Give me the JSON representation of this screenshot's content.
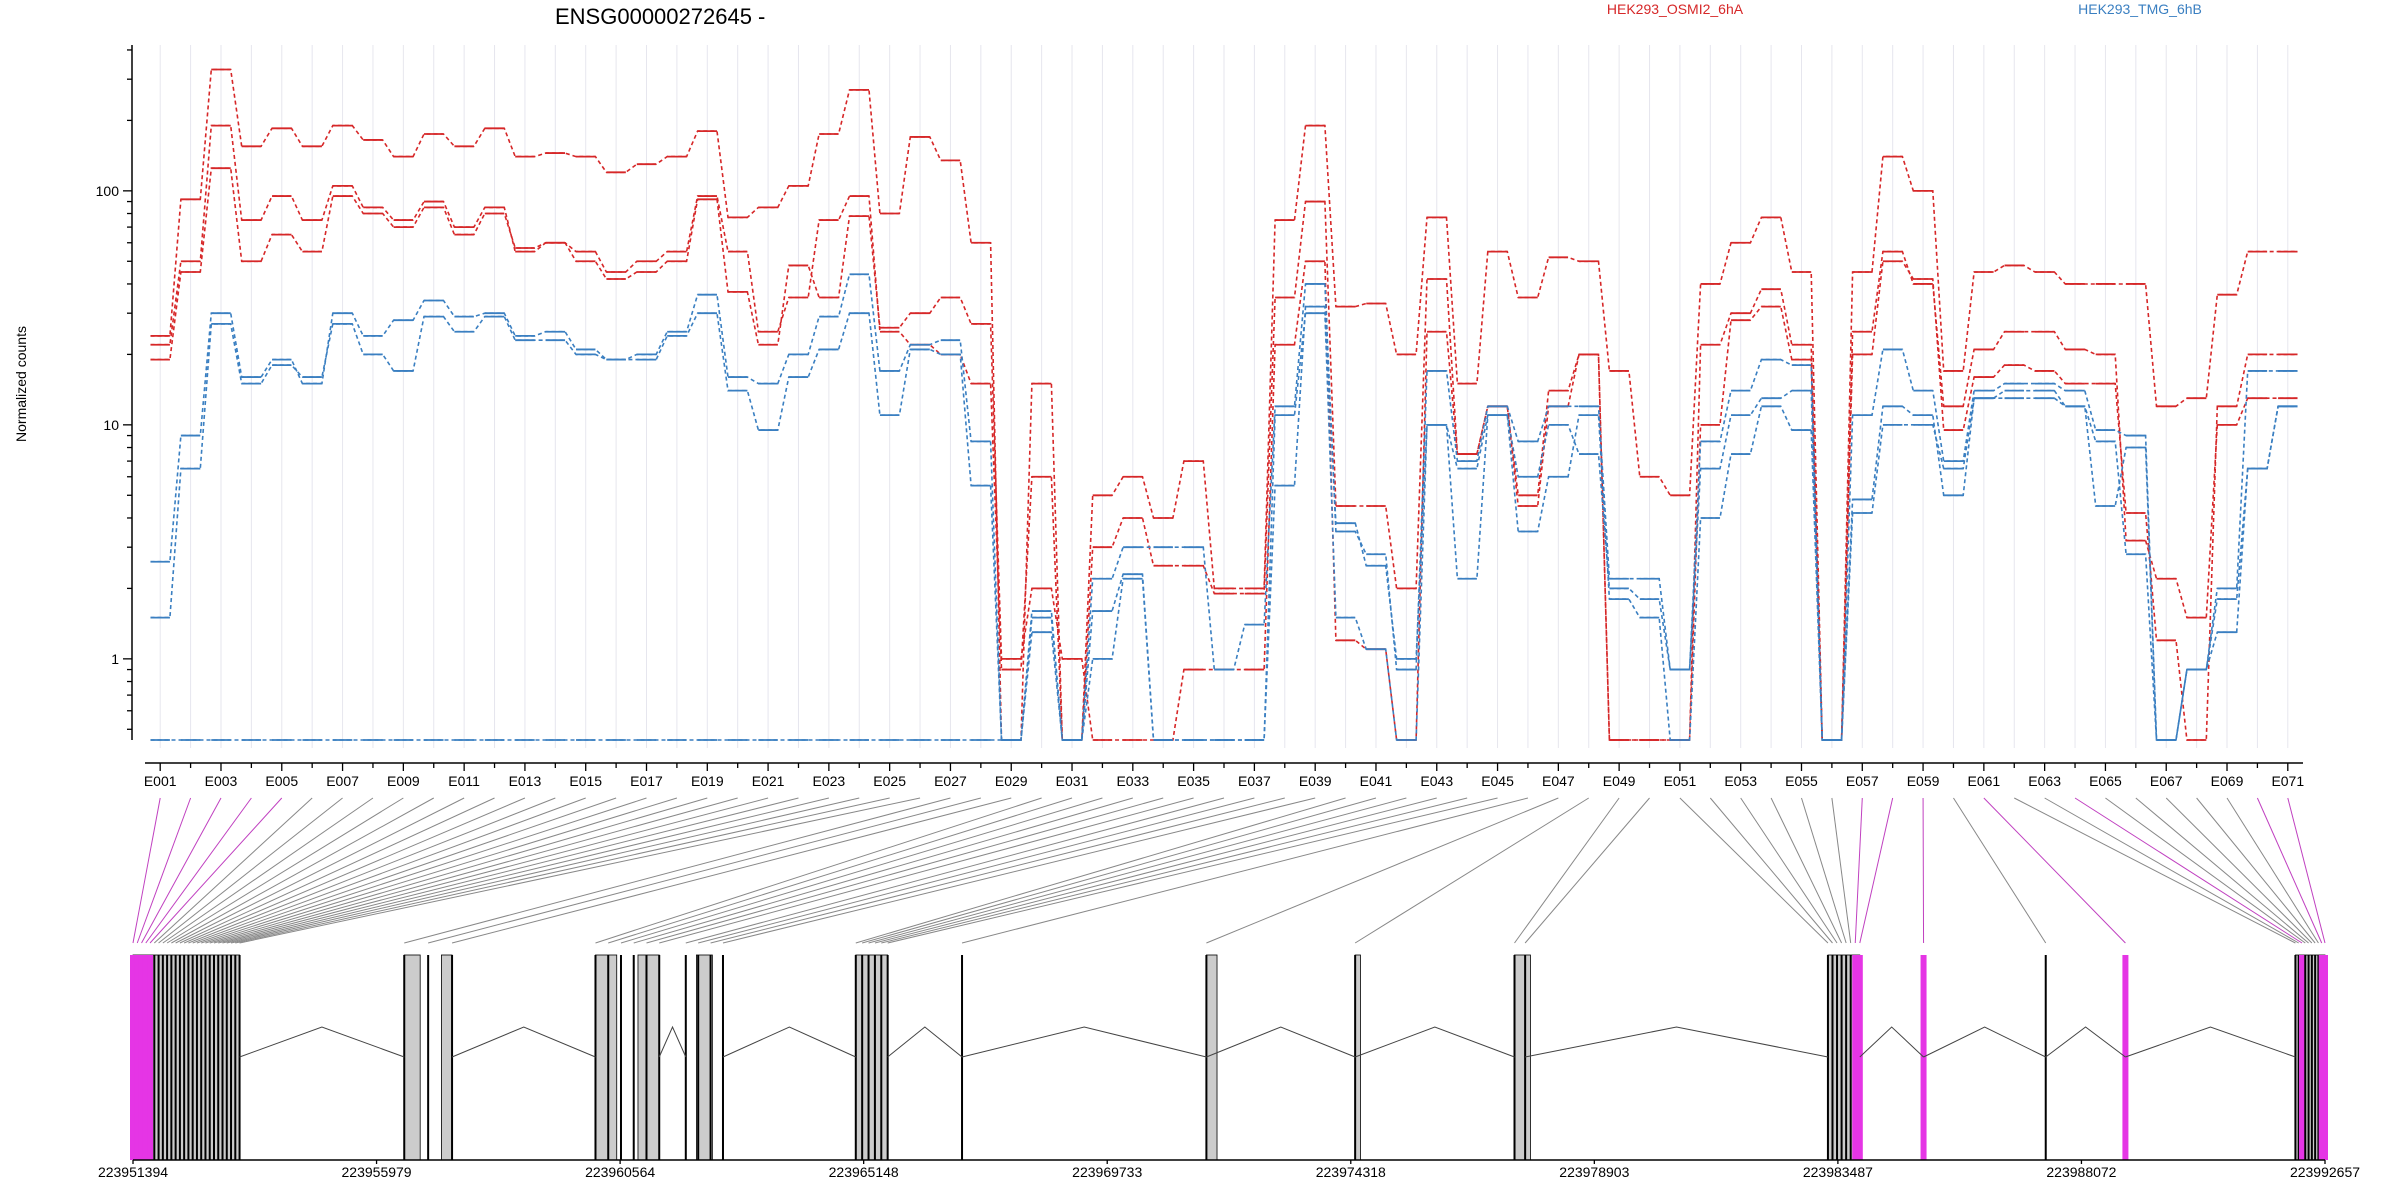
{
  "chart_data": {
    "type": "line",
    "title": "ENSG00000272645 -",
    "ylabel": "Normalized counts",
    "y_scale": "log",
    "ylim": [
      0.45,
      420
    ],
    "y_ticks": [
      "1",
      "10",
      "100"
    ],
    "grid": "vertical",
    "legend": [
      {
        "name": "HEK293_OSMI2_6hA",
        "color": "#d62728"
      },
      {
        "name": "HEK293_TMG_6hB",
        "color": "#3a7fc1"
      }
    ],
    "exon_labels_shown": [
      "E001",
      "E003",
      "E005",
      "E007",
      "E009",
      "E011",
      "E013",
      "E015",
      "E017",
      "E019",
      "E021",
      "E023",
      "E025",
      "E027",
      "E029",
      "E031",
      "E033",
      "E035",
      "E037",
      "E039",
      "E041",
      "E043",
      "E045",
      "E047",
      "E049",
      "E051",
      "E053",
      "E055",
      "E057",
      "E059",
      "E061",
      "E063",
      "E065",
      "E067",
      "E069",
      "E071"
    ],
    "exon_count": 71,
    "series": [
      {
        "name": "HEK293_OSMI2_6hA",
        "color": "#d62728",
        "style": "dashed",
        "values": [
          24,
          92,
          330,
          155,
          185,
          155,
          190,
          165,
          140,
          175,
          155,
          185,
          140,
          145,
          140,
          120,
          130,
          140,
          180,
          77,
          85,
          105,
          175,
          270,
          80,
          170,
          135,
          60,
          0.45,
          15,
          0.45,
          5,
          6,
          4,
          7,
          2,
          2,
          75,
          190,
          32,
          33,
          20,
          77,
          15,
          55,
          35,
          52,
          50,
          17,
          6,
          5,
          40,
          60,
          77,
          45,
          0.45,
          45,
          140,
          100,
          17,
          45,
          48,
          45,
          40,
          40,
          40,
          12,
          13,
          36,
          55,
          55
        ]
      },
      {
        "name": "HEK293_OSMI2_6hA",
        "color": "#d62728",
        "style": "dashed",
        "values": [
          22,
          50,
          190,
          75,
          95,
          75,
          105,
          85,
          75,
          90,
          70,
          85,
          55,
          60,
          55,
          45,
          50,
          55,
          95,
          55,
          25,
          35,
          75,
          95,
          25,
          22,
          20,
          15,
          0.9,
          6,
          0.45,
          3,
          4,
          2.5,
          2.5,
          1.9,
          1.9,
          35,
          90,
          4.5,
          4.5,
          2,
          42,
          7.5,
          12,
          5,
          14,
          20,
          0.45,
          0.45,
          0.45,
          22,
          30,
          38,
          22,
          0.45,
          25,
          55,
          40,
          12,
          21,
          25,
          25,
          21,
          20,
          3.2,
          2.2,
          1.5,
          10,
          13,
          13
        ]
      },
      {
        "name": "HEK293_OSMI2_6hA",
        "color": "#d62728",
        "style": "dashed",
        "values": [
          19,
          45,
          125,
          50,
          65,
          55,
          95,
          80,
          70,
          85,
          65,
          80,
          57,
          60,
          50,
          42,
          45,
          50,
          92,
          37,
          22,
          48,
          35,
          78,
          26,
          30,
          35,
          27,
          1.0,
          2,
          1.0,
          0.45,
          0.45,
          0.45,
          0.9,
          0.9,
          0.9,
          22,
          50,
          1.2,
          1.1,
          0.45,
          25,
          7.5,
          12,
          4.5,
          12,
          20,
          0.45,
          0.45,
          0.45,
          10,
          28,
          32,
          19,
          0.45,
          20,
          50,
          42,
          9.5,
          16,
          18,
          17,
          15,
          15,
          4.2,
          1.2,
          0.45,
          12,
          20,
          20
        ]
      },
      {
        "name": "HEK293_TMG_6hB",
        "color": "#3a7fc1",
        "style": "dashed",
        "values": [
          2.6,
          9,
          30,
          16,
          19,
          15,
          30,
          24,
          28,
          34,
          29,
          30,
          24,
          25,
          21,
          19,
          20,
          25,
          36,
          16,
          15,
          20,
          29,
          44,
          17,
          22,
          23,
          8.5,
          0.45,
          1.6,
          0.45,
          2.2,
          3,
          3,
          3,
          0.9,
          1.4,
          12,
          40,
          3.5,
          2.8,
          0.9,
          17,
          7,
          12,
          8.5,
          12,
          12,
          2.2,
          2.2,
          0.9,
          8.5,
          14,
          19,
          18,
          0.45,
          11,
          21,
          14,
          7,
          14,
          15,
          15,
          14,
          9.5,
          9,
          0.45,
          0.9,
          2,
          17,
          17
        ]
      },
      {
        "name": "HEK293_TMG_6hB",
        "color": "#3a7fc1",
        "style": "dashed",
        "values": [
          1.5,
          6.5,
          27,
          15,
          18,
          16,
          27,
          20,
          17,
          29,
          25,
          29,
          23,
          23,
          20,
          19,
          19,
          24,
          30,
          14,
          9.5,
          16,
          21,
          30,
          11,
          21,
          20,
          5.5,
          0.45,
          1.3,
          0.45,
          1.6,
          2.3,
          0.45,
          0.45,
          0.45,
          0.45,
          5.5,
          32,
          3.8,
          2.5,
          1.0,
          10,
          6.5,
          11,
          6,
          10,
          7.5,
          2.0,
          1.8,
          0.9,
          6.5,
          11,
          13,
          14,
          0.45,
          4.8,
          12,
          11,
          5,
          13,
          14,
          14,
          12,
          8.5,
          2.8,
          0.45,
          0.9,
          1.8,
          6.5,
          12
        ]
      },
      {
        "name": "HEK293_TMG_6hB",
        "color": "#3a7fc1",
        "style": "dashed",
        "values": [
          0.45,
          0.45,
          0.45,
          0.45,
          0.45,
          0.45,
          0.45,
          0.45,
          0.45,
          0.45,
          0.45,
          0.45,
          0.45,
          0.45,
          0.45,
          0.45,
          0.45,
          0.45,
          0.45,
          0.45,
          0.45,
          0.45,
          0.45,
          0.45,
          0.45,
          0.45,
          0.45,
          0.45,
          0.45,
          1.5,
          0.45,
          1.0,
          2.2,
          0.45,
          0.45,
          0.45,
          0.45,
          11,
          30,
          1.5,
          1.1,
          0.45,
          10,
          2.2,
          11,
          3.5,
          6,
          11,
          1.8,
          1.5,
          0.45,
          4,
          7.5,
          12,
          9.5,
          0.45,
          4.2,
          10,
          10,
          6.5,
          13,
          13,
          13,
          12,
          4.5,
          8,
          0.45,
          0.9,
          1.3,
          6.5,
          12
        ]
      }
    ],
    "genomic_axis": {
      "tick_labels": [
        "223951394",
        "223955979",
        "223960564",
        "223965148",
        "223969733",
        "223974318",
        "223978903",
        "223983487",
        "223988072",
        "223992657"
      ],
      "range": [
        223951394,
        223992657
      ]
    }
  }
}
